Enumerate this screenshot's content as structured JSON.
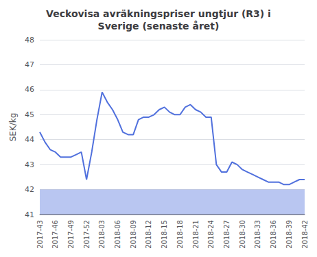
{
  "chart_data": {
    "type": "line",
    "title": "Veckovisa avräkningspriser ungtjur (R3) i\nSverige (senaste året)",
    "ylabel": "SEK/kg",
    "categories": [
      "2017-43",
      null,
      null,
      "2017-46",
      null,
      null,
      "2017-49",
      null,
      null,
      "2017-52",
      null,
      null,
      "2018-03",
      null,
      null,
      "2018-06",
      null,
      null,
      "2018-09",
      null,
      null,
      "2018-12",
      null,
      null,
      "2018-15",
      null,
      null,
      "2018-18",
      null,
      null,
      "2018-21",
      null,
      null,
      "2018-24",
      null,
      null,
      "2018-27",
      null,
      null,
      "2018-30",
      null,
      null,
      "2018-33",
      null,
      null,
      "2018-36",
      null,
      null,
      "2018-39",
      null,
      null,
      "2018-42"
    ],
    "values": [
      44.3,
      43.9,
      43.6,
      43.5,
      43.3,
      43.3,
      43.3,
      43.4,
      43.5,
      42.4,
      43.5,
      44.8,
      45.9,
      45.5,
      45.2,
      44.8,
      44.3,
      44.2,
      44.2,
      44.8,
      44.9,
      44.9,
      45.0,
      45.2,
      45.3,
      45.1,
      45.0,
      45.0,
      45.3,
      45.4,
      45.2,
      45.1,
      44.9,
      44.9,
      43.0,
      42.7,
      42.7,
      43.1,
      43.0,
      42.8,
      42.7,
      42.6,
      42.5,
      42.4,
      42.3,
      42.3,
      42.3,
      42.2,
      42.2,
      42.3,
      42.4,
      42.4
    ],
    "band": [
      41.0,
      42.0
    ],
    "ylim": [
      41,
      48
    ],
    "yticks": [
      41,
      42,
      43,
      44,
      45,
      46,
      47,
      48
    ],
    "grid": true
  }
}
